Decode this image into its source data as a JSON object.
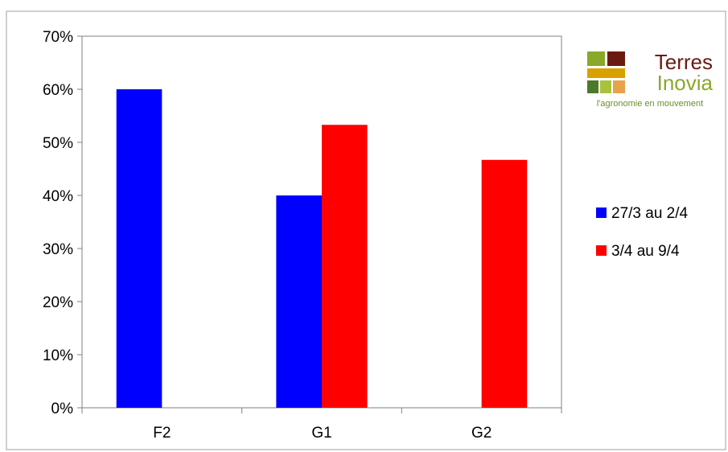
{
  "chart_data": {
    "type": "bar",
    "categories": [
      "F2",
      "G1",
      "G2"
    ],
    "series": [
      {
        "name": "27/3 au 2/4",
        "color": "#0000ff",
        "values": [
          0.6,
          0.4,
          0
        ]
      },
      {
        "name": "3/4 au 9/4",
        "color": "#ff0000",
        "values": [
          0,
          0.533,
          0.467
        ]
      }
    ],
    "ylim": [
      0,
      0.7
    ],
    "yticks": [
      {
        "value": 0,
        "label": "0%"
      },
      {
        "value": 0.1,
        "label": "10%"
      },
      {
        "value": 0.2,
        "label": "20%"
      },
      {
        "value": 0.3,
        "label": "30%"
      },
      {
        "value": 0.4,
        "label": "40%"
      },
      {
        "value": 0.5,
        "label": "50%"
      },
      {
        "value": 0.6,
        "label": "60%"
      },
      {
        "value": 0.7,
        "label": "70%"
      }
    ],
    "grid": false,
    "legend_position": "right"
  },
  "logo": {
    "line1": "Terres",
    "line2": "Inovia",
    "tagline": "l'agronomie en mouvement",
    "colors": [
      "#8aa82a",
      "#6b1a12",
      "#d9a100",
      "#4d7a2a",
      "#a8c23a",
      "#e8a24a"
    ]
  }
}
